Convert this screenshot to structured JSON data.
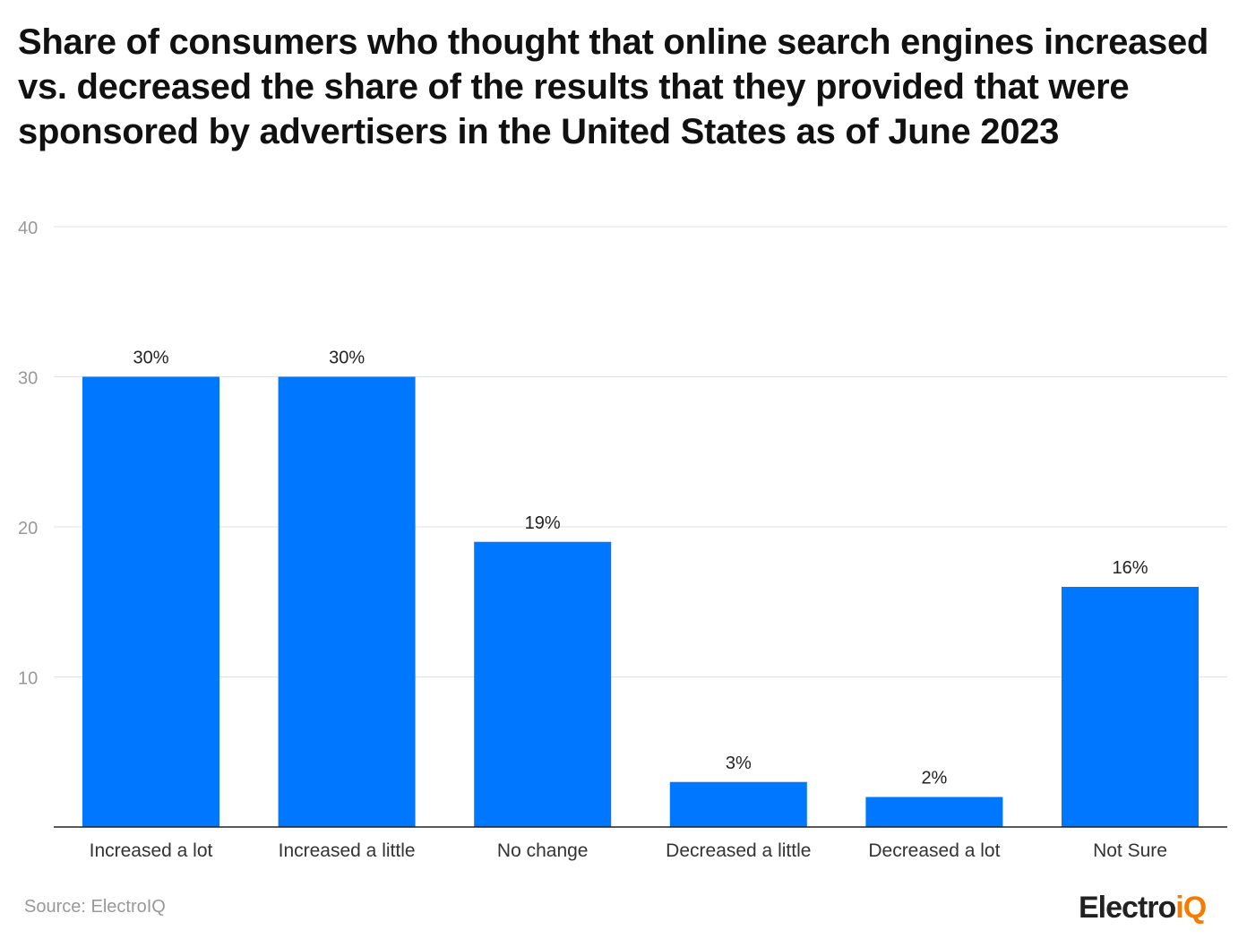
{
  "chart_data": {
    "type": "bar",
    "title": "Share of consumers who thought that online search engines increased vs. decreased the share of the results that they provided that were sponsored by advertisers in the United States as of June 2023",
    "categories": [
      "Increased a lot",
      "Increased a little",
      "No change",
      "Decreased a little",
      "Decreased a lot",
      "Not Sure"
    ],
    "values": [
      30,
      30,
      19,
      3,
      2,
      16
    ],
    "data_labels": [
      "30%",
      "30%",
      "19%",
      "3%",
      "2%",
      "16%"
    ],
    "ylim": [
      0,
      40
    ],
    "yticks": [
      10,
      20,
      30,
      40
    ],
    "xlabel": "",
    "ylabel": "",
    "grid": true,
    "bar_color": "#0077ff"
  },
  "footer": {
    "source": "Source: ElectroIQ",
    "logo": "ElectroiQ"
  }
}
